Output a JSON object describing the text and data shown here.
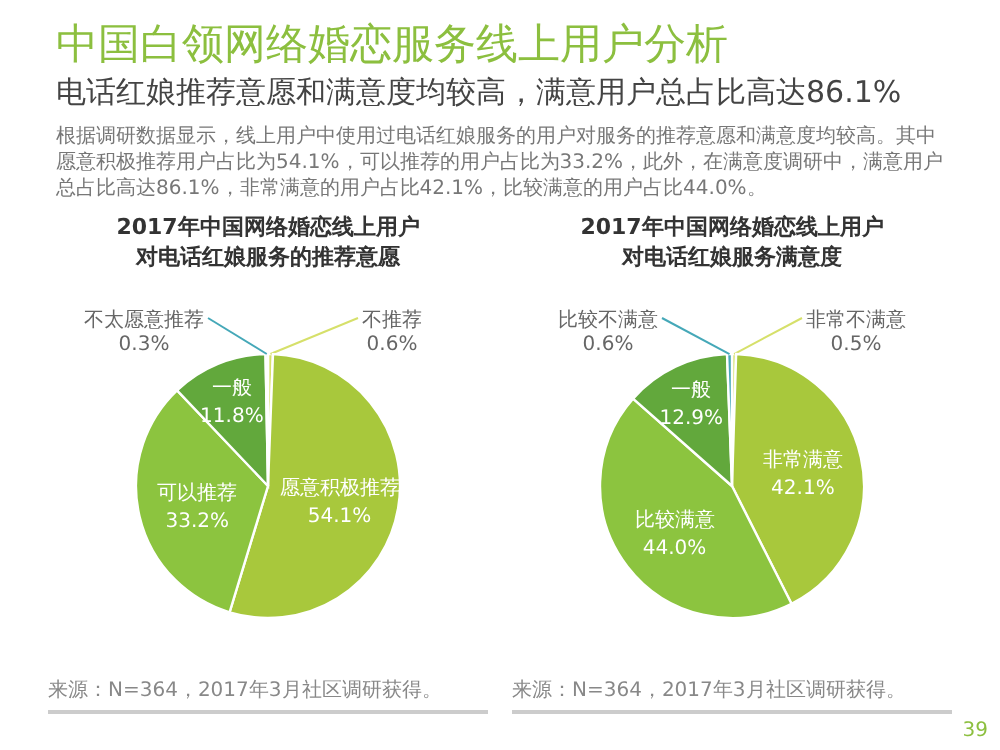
{
  "chart_data": [
    {
      "type": "other",
      "title": "中国白领网络婚恋服务线上用户分析",
      "subtitle": "电话红娘推荐意愿和满意度均较高，满意用户总占比高达86.1%",
      "annotations": [
        "根据调研数据显示，线上用户中使用过电话红娘服务的用户对服务的推荐意愿和满意度均较高。其中愿意积极推荐用户占比为54.1%，可以推荐的用户占比为33.2%，此外，在满意度调研中，满意用户总占比高达86.1%，非常满意的用户占比42.1%，比较满意的用户占比44.0%。",
        "39"
      ]
    },
    {
      "type": "pie",
      "title": "2017年中国网络婚恋线上用户对电话红娘服务的推荐意愿",
      "categories": [
        "不推荐",
        "愿意积极推荐",
        "可以推荐",
        "一般",
        "不太愿意推荐"
      ],
      "values": [
        0.6,
        54.1,
        33.2,
        11.8,
        0.3
      ],
      "value_labels": [
        "0.6%",
        "54.1%",
        "33.2%",
        "11.8%",
        "0.3%"
      ],
      "colors": [
        "#d6e06a",
        "#a8c83c",
        "#8cc43f",
        "#62a83c",
        "#45a8b8"
      ],
      "annotations": [
        "来源：N=364，2017年3月社区调研获得。"
      ]
    },
    {
      "type": "pie",
      "title": "2017年中国网络婚恋线上用户对电话红娘服务满意度",
      "categories": [
        "非常不满意",
        "非常满意",
        "比较满意",
        "一般",
        "比较不满意"
      ],
      "values": [
        0.5,
        42.1,
        44.0,
        12.9,
        0.6
      ],
      "value_labels": [
        "0.5%",
        "42.1%",
        "44.0%",
        "12.9%",
        "0.6%"
      ],
      "colors": [
        "#d6e06a",
        "#a8c83c",
        "#8cc43f",
        "#62a83c",
        "#45a8b8"
      ],
      "annotations": [
        "来源：N=364，2017年3月社区调研获得。"
      ]
    }
  ]
}
